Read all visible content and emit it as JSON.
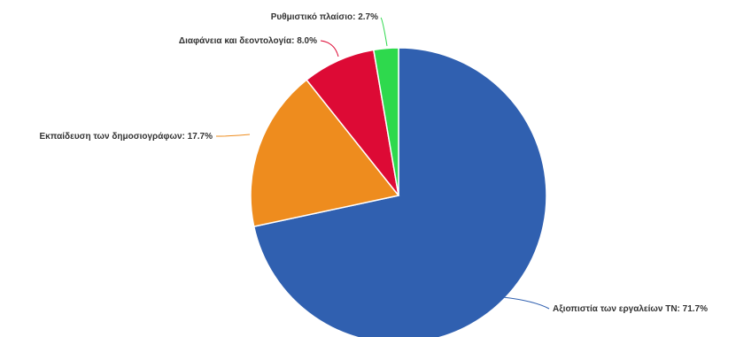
{
  "chart_data": {
    "type": "pie",
    "title": "",
    "start_angle_deg": 0,
    "direction": "clockwise",
    "label_style": "outside-with-leader-lines",
    "slices": [
      {
        "label": "Αξιοπιστία των εργαλείων ΤΝ: 71.7%",
        "name": "Αξιοπιστία των εργαλείων ΤΝ",
        "value": 71.7,
        "color": "#3060b0"
      },
      {
        "label": "Εκπαίδευση των δημοσιογράφων: 17.7%",
        "name": "Εκπαίδευση των δημοσιογράφων",
        "value": 17.7,
        "color": "#ee8c1e"
      },
      {
        "label": "Διαφάνεια και δεοντολογία: 8.0%",
        "name": "Διαφάνεια και δεοντολογία",
        "value": 8.0,
        "color": "#dd0a35"
      },
      {
        "label": "Ρυθμιστικό πλαίσιο: 2.7%",
        "name": "Ρυθμιστικό πλαίσιο",
        "value": 2.7,
        "color": "#2ed94d"
      }
    ]
  }
}
